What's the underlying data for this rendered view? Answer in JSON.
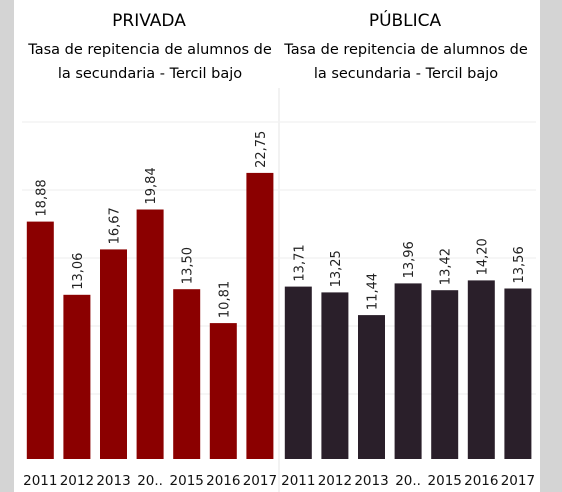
{
  "chart_data": [
    {
      "type": "bar",
      "title": "PRIVADA",
      "subtitle": [
        "Tasa de repitencia de alumnos de",
        "la secundaria - Tercil bajo"
      ],
      "categories": [
        "2011",
        "2012",
        "2013",
        "20..",
        "2015",
        "2016",
        "2017"
      ],
      "values": [
        18.88,
        13.06,
        16.67,
        19.84,
        13.5,
        10.81,
        22.75
      ],
      "value_labels": [
        "18,88",
        "13,06",
        "16,67",
        "19,84",
        "13,50",
        "10,81",
        "22,75"
      ],
      "color": "#8b0000",
      "ylim": [
        0,
        29.5
      ],
      "grid": true
    },
    {
      "type": "bar",
      "title": "PÚBLICA",
      "subtitle": [
        "Tasa de repitencia de alumnos de",
        "la secundaria - Tercil bajo"
      ],
      "categories": [
        "2011",
        "2012",
        "2013",
        "20..",
        "2015",
        "2016",
        "2017"
      ],
      "values": [
        13.71,
        13.25,
        11.44,
        13.96,
        13.42,
        14.2,
        13.56
      ],
      "value_labels": [
        "13,71",
        "13,25",
        "11,44",
        "13,96",
        "13,42",
        "14,20",
        "13,56"
      ],
      "color": "#2a1f2a",
      "ylim": [
        0,
        29.5
      ],
      "grid": true
    }
  ]
}
